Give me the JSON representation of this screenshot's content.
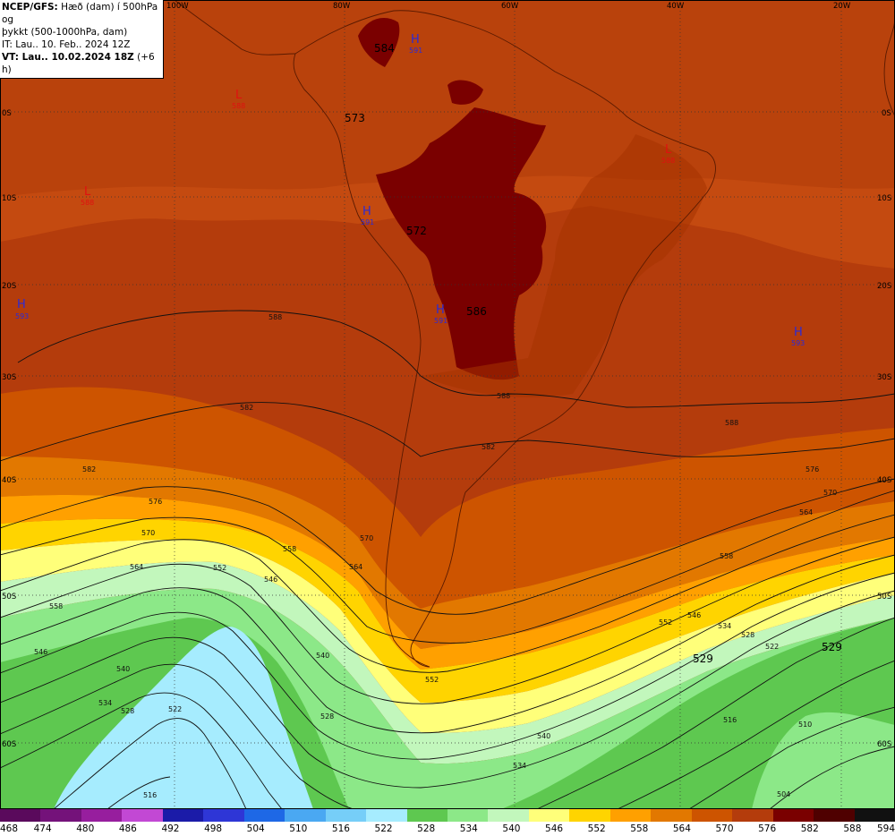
{
  "header": {
    "line1_bold": "NCEP/GFS:",
    "line1_rest": " Hæð (dam) í 500hPa og",
    "line2": "þykkt (500-1000hPa, dam)",
    "line3": "IT: Lau.. 10. Feb.. 2024 12Z",
    "line4_bold": "VT: Lau.. 10.02.2024 18Z",
    "line4_rest": " (+6 h)"
  },
  "lon_labels": [
    "100W",
    "80W",
    "60W",
    "40W",
    "20W"
  ],
  "lat_labels": [
    "0S",
    "10S",
    "20S",
    "30S",
    "40S",
    "50S",
    "60S"
  ],
  "height_labels": [
    "584",
    "573",
    "572",
    "586",
    "529",
    "529"
  ],
  "pressure_centers": [
    {
      "type": "H",
      "value": "591"
    },
    {
      "type": "H",
      "value": "591"
    },
    {
      "type": "H",
      "value": "591"
    },
    {
      "type": "H",
      "value": "593"
    },
    {
      "type": "H",
      "value": "593"
    },
    {
      "type": "L",
      "value": "588"
    },
    {
      "type": "L",
      "value": "588"
    },
    {
      "type": "L",
      "value": "588"
    }
  ],
  "contour_labels": [
    "588",
    "588",
    "588",
    "582",
    "582",
    "582",
    "576",
    "576",
    "570",
    "570",
    "570",
    "564",
    "564",
    "564",
    "558",
    "558",
    "558",
    "552",
    "552",
    "552",
    "546",
    "546",
    "546",
    "540",
    "540",
    "540",
    "534",
    "534",
    "534",
    "528",
    "528",
    "528",
    "522",
    "522",
    "516",
    "516",
    "510",
    "504"
  ],
  "legend": {
    "values": [
      "468",
      "474",
      "480",
      "486",
      "492",
      "498",
      "504",
      "510",
      "516",
      "522",
      "528",
      "534",
      "540",
      "546",
      "552",
      "558",
      "564",
      "570",
      "576",
      "582",
      "588",
      "594"
    ],
    "colors": [
      "#5a0a5c",
      "#74127a",
      "#971e9e",
      "#c248d4",
      "#1b1ba8",
      "#2e36d6",
      "#1e68e6",
      "#4aa8f2",
      "#76cef8",
      "#a6ecfe",
      "#5ec850",
      "#8ce888",
      "#c2f7bc",
      "#ffff7a",
      "#ffd400",
      "#ffa000",
      "#e27800",
      "#cd5400",
      "#b43c0c",
      "#7a0000",
      "#4f0000",
      "#111111"
    ]
  }
}
